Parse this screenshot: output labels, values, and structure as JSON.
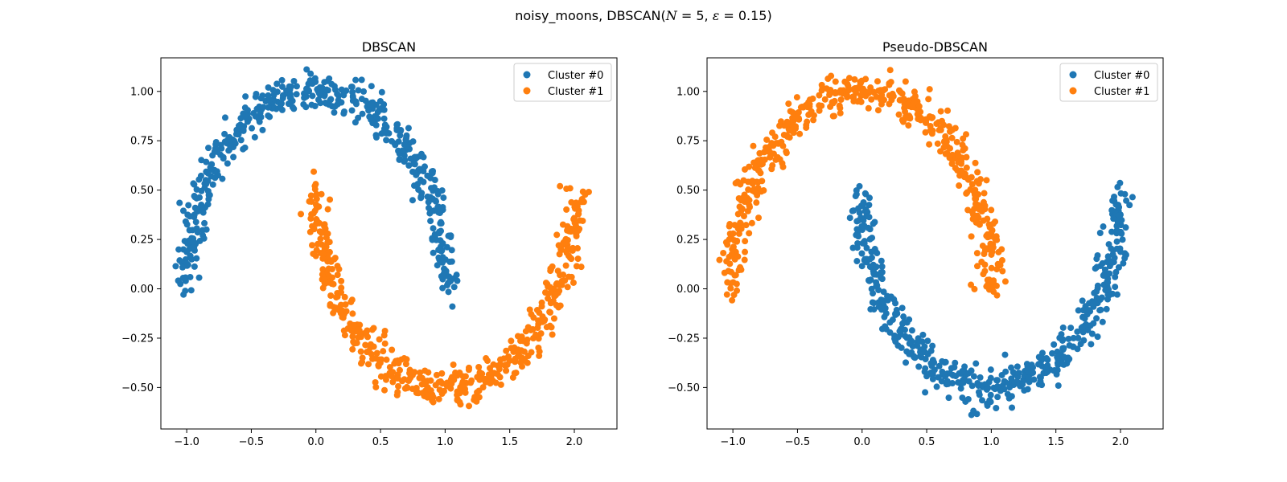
{
  "figure": {
    "suptitle_parts": {
      "a": "noisy_moons, DBSCAN(",
      "n_var": "N",
      "n_eq": " = 5, ",
      "eps_var": "ε",
      "eps_eq": " = 0.15)"
    }
  },
  "colors": {
    "cluster0": "#1f77b4",
    "cluster1": "#ff7f0e"
  },
  "chart_data": [
    {
      "type": "scatter",
      "title": "DBSCAN",
      "xlim": [
        -1.2,
        2.33
      ],
      "ylim": [
        -0.71,
        1.17
      ],
      "xticks": [
        -1.0,
        -0.5,
        0.0,
        0.5,
        1.0,
        1.5,
        2.0
      ],
      "xtick_labels": [
        "−1.0",
        "−0.5",
        "0.0",
        "0.5",
        "1.0",
        "1.5",
        "2.0"
      ],
      "yticks": [
        -0.5,
        -0.25,
        0.0,
        0.25,
        0.5,
        0.75,
        1.0
      ],
      "ytick_labels": [
        "−0.50",
        "−0.25",
        "0.00",
        "0.25",
        "0.50",
        "0.75",
        "1.00"
      ],
      "legend_position": "top-right",
      "series": [
        {
          "name": "Cluster #0",
          "shape": "upper-moon",
          "n_points": 500,
          "x_range": [
            -1.1,
            1.1
          ],
          "y_range": [
            -0.06,
            1.08
          ]
        },
        {
          "name": "Cluster #1",
          "shape": "lower-moon",
          "n_points": 500,
          "x_range": [
            -0.12,
            2.12
          ],
          "y_range": [
            -0.62,
            0.56
          ]
        }
      ]
    },
    {
      "type": "scatter",
      "title": "Pseudo-DBSCAN",
      "xlim": [
        -1.2,
        2.33
      ],
      "ylim": [
        -0.71,
        1.17
      ],
      "xticks": [
        -1.0,
        -0.5,
        0.0,
        0.5,
        1.0,
        1.5,
        2.0
      ],
      "xtick_labels": [
        "−1.0",
        "−0.5",
        "0.0",
        "0.5",
        "1.0",
        "1.5",
        "2.0"
      ],
      "yticks": [
        -0.5,
        -0.25,
        0.0,
        0.25,
        0.5,
        0.75,
        1.0
      ],
      "ytick_labels": [
        "−0.50",
        "−0.25",
        "0.00",
        "0.25",
        "0.50",
        "0.75",
        "1.00"
      ],
      "legend_position": "top-right",
      "series": [
        {
          "name": "Cluster #0",
          "shape": "lower-moon",
          "n_points": 500,
          "x_range": [
            -0.12,
            2.12
          ],
          "y_range": [
            -0.62,
            0.56
          ]
        },
        {
          "name": "Cluster #1",
          "shape": "upper-moon",
          "n_points": 500,
          "x_range": [
            -1.1,
            1.1
          ],
          "y_range": [
            -0.06,
            1.08
          ]
        }
      ]
    }
  ]
}
